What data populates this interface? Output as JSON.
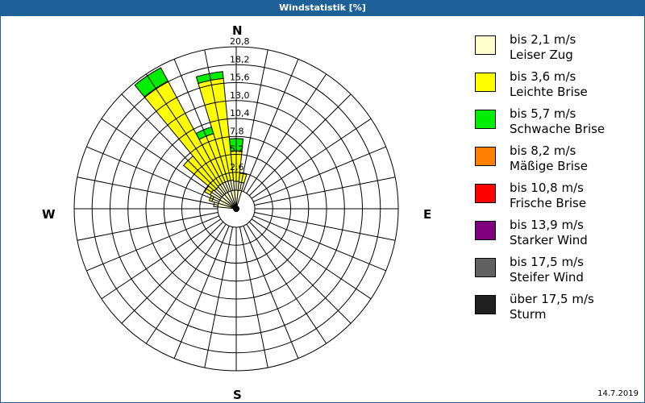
{
  "window": {
    "title": "Windstatistik [%]"
  },
  "compass": {
    "north": "N",
    "east": "E",
    "south": "S",
    "west": "W"
  },
  "footer": {
    "date": "14.7.2019"
  },
  "legend": [
    {
      "range": "bis 2,1 m/s",
      "name": "Leiser Zug",
      "color": "#ffffcc"
    },
    {
      "range": "bis 3,6 m/s",
      "name": "Leichte Brise",
      "color": "#ffff00"
    },
    {
      "range": "bis 5,7 m/s",
      "name": "Schwache Brise",
      "color": "#00ee00"
    },
    {
      "range": "bis 8,2 m/s",
      "name": "Mäßige Brise",
      "color": "#ff8000"
    },
    {
      "range": "bis 10,8 m/s",
      "name": "Frische Brise",
      "color": "#ff0000"
    },
    {
      "range": "bis 13,9 m/s",
      "name": "Starker Wind",
      "color": "#800080"
    },
    {
      "range": "bis 17,5 m/s",
      "name": "Steifer Wind",
      "color": "#606060"
    },
    {
      "range": "über 17,5 m/s",
      "name": "Sturm",
      "color": "#202020"
    }
  ],
  "chart_data": {
    "type": "polar-bar (wind rose)",
    "title": "Windstatistik [%]",
    "unit": "%",
    "ring_labels": [
      "2,6",
      "5,2",
      "7,8",
      "10,4",
      "13,0",
      "15,6",
      "18,2",
      "20,8"
    ],
    "r_max": 20.8,
    "sectors": 32,
    "sector_width_deg": 11.25,
    "series_names": [
      "Leiser Zug",
      "Leichte Brise",
      "Schwache Brise",
      "Mäßige Brise",
      "Frische Brise",
      "Starker Wind",
      "Steifer Wind",
      "Sturm"
    ],
    "bars": [
      {
        "direction_deg": 0,
        "segments": [
          1.3,
          4.4,
          1.8,
          0,
          0,
          0,
          0,
          0
        ]
      },
      {
        "direction_deg": 11.25,
        "segments": [
          1.2,
          1.3,
          0,
          0,
          0,
          0,
          0,
          0
        ]
      },
      {
        "direction_deg": 348.75,
        "segments": [
          1.5,
          14.8,
          1.0,
          0,
          0,
          0,
          0,
          0
        ]
      },
      {
        "direction_deg": 337.5,
        "segments": [
          1.5,
          7.2,
          1.0,
          0,
          0,
          0,
          0,
          0
        ]
      },
      {
        "direction_deg": 326.25,
        "segments": [
          1.5,
          16.8,
          2.2,
          0,
          0,
          0,
          0,
          0
        ]
      },
      {
        "direction_deg": 315,
        "segments": [
          1.4,
          5.8,
          0,
          0,
          0,
          0,
          0,
          0
        ]
      },
      {
        "direction_deg": 303.75,
        "segments": [
          1.6,
          0.9,
          0,
          0,
          0,
          0,
          0,
          0
        ]
      },
      {
        "direction_deg": 292.5,
        "segments": [
          1.0,
          0.4,
          0,
          0,
          0,
          0,
          0,
          0
        ]
      },
      {
        "direction_deg": 281.25,
        "segments": [
          0.6,
          0,
          0,
          0,
          0,
          0,
          0,
          0
        ]
      }
    ],
    "compass_labels": [
      "N",
      "E",
      "S",
      "W"
    ],
    "legend_position": "right"
  }
}
